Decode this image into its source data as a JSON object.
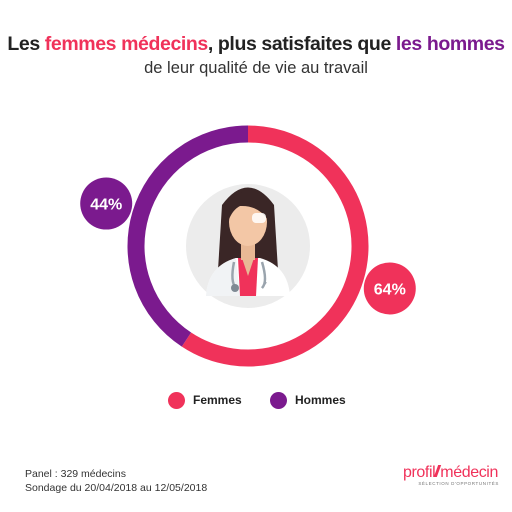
{
  "title": {
    "part1": "Les ",
    "highlight1": "femmes médecins",
    "part2": ", plus satisfaites que ",
    "highlight2": "les hommes"
  },
  "subtitle": "de leur qualité de vie au travail",
  "chart_data": {
    "type": "pie",
    "labels": [
      "Femmes",
      "Hommes"
    ],
    "values": [
      64,
      44
    ],
    "value_labels": [
      "64%",
      "44%"
    ],
    "colors": [
      "#f0325a",
      "#7b1a8e"
    ],
    "legend_position": "bottom"
  },
  "legend": [
    {
      "label": "Femmes",
      "color": "#f0325a"
    },
    {
      "label": "Hommes",
      "color": "#7b1a8e"
    }
  ],
  "footer": {
    "panel": "Panel : 329 médecins",
    "survey": "Sondage du 20/04/2018 au 12/05/2018"
  },
  "logo": {
    "part1": "profil",
    "part2": "médecin",
    "tagline": "SÉLECTION D'OPPORTUNITÉS"
  },
  "illustration": {
    "icon": "female-doctor-icon"
  }
}
